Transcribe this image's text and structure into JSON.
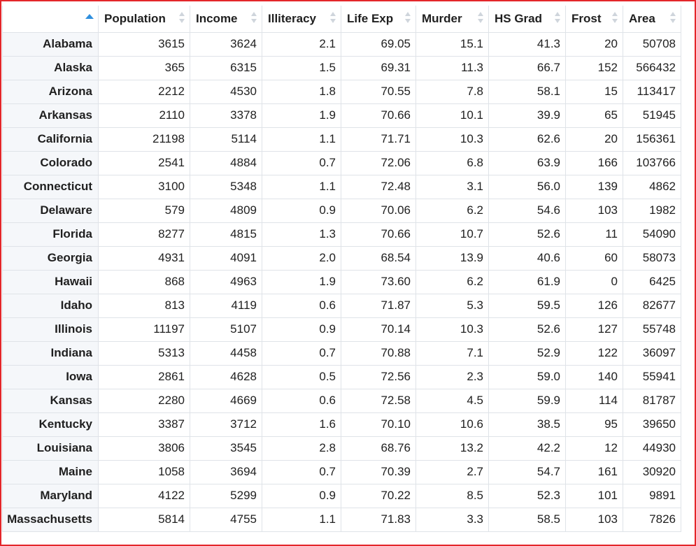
{
  "colors": {
    "accent": "#2f8fde",
    "frame_border": "#e3262a",
    "rowname_bg": "#f5f7fa",
    "grid": "#dfe3e8"
  },
  "icons": {
    "corner_sort": "sort-ascending-icon",
    "column_sort": "sort-icon"
  },
  "columns": [
    "Population",
    "Income",
    "Illiteracy",
    "Life Exp",
    "Murder",
    "HS Grad",
    "Frost",
    "Area"
  ],
  "rows": [
    {
      "name": "Alabama",
      "cells": [
        "3615",
        "3624",
        "2.1",
        "69.05",
        "15.1",
        "41.3",
        "20",
        "50708"
      ]
    },
    {
      "name": "Alaska",
      "cells": [
        "365",
        "6315",
        "1.5",
        "69.31",
        "11.3",
        "66.7",
        "152",
        "566432"
      ]
    },
    {
      "name": "Arizona",
      "cells": [
        "2212",
        "4530",
        "1.8",
        "70.55",
        "7.8",
        "58.1",
        "15",
        "113417"
      ]
    },
    {
      "name": "Arkansas",
      "cells": [
        "2110",
        "3378",
        "1.9",
        "70.66",
        "10.1",
        "39.9",
        "65",
        "51945"
      ]
    },
    {
      "name": "California",
      "cells": [
        "21198",
        "5114",
        "1.1",
        "71.71",
        "10.3",
        "62.6",
        "20",
        "156361"
      ]
    },
    {
      "name": "Colorado",
      "cells": [
        "2541",
        "4884",
        "0.7",
        "72.06",
        "6.8",
        "63.9",
        "166",
        "103766"
      ]
    },
    {
      "name": "Connecticut",
      "cells": [
        "3100",
        "5348",
        "1.1",
        "72.48",
        "3.1",
        "56.0",
        "139",
        "4862"
      ]
    },
    {
      "name": "Delaware",
      "cells": [
        "579",
        "4809",
        "0.9",
        "70.06",
        "6.2",
        "54.6",
        "103",
        "1982"
      ]
    },
    {
      "name": "Florida",
      "cells": [
        "8277",
        "4815",
        "1.3",
        "70.66",
        "10.7",
        "52.6",
        "11",
        "54090"
      ]
    },
    {
      "name": "Georgia",
      "cells": [
        "4931",
        "4091",
        "2.0",
        "68.54",
        "13.9",
        "40.6",
        "60",
        "58073"
      ]
    },
    {
      "name": "Hawaii",
      "cells": [
        "868",
        "4963",
        "1.9",
        "73.60",
        "6.2",
        "61.9",
        "0",
        "6425"
      ]
    },
    {
      "name": "Idaho",
      "cells": [
        "813",
        "4119",
        "0.6",
        "71.87",
        "5.3",
        "59.5",
        "126",
        "82677"
      ]
    },
    {
      "name": "Illinois",
      "cells": [
        "11197",
        "5107",
        "0.9",
        "70.14",
        "10.3",
        "52.6",
        "127",
        "55748"
      ]
    },
    {
      "name": "Indiana",
      "cells": [
        "5313",
        "4458",
        "0.7",
        "70.88",
        "7.1",
        "52.9",
        "122",
        "36097"
      ]
    },
    {
      "name": "Iowa",
      "cells": [
        "2861",
        "4628",
        "0.5",
        "72.56",
        "2.3",
        "59.0",
        "140",
        "55941"
      ]
    },
    {
      "name": "Kansas",
      "cells": [
        "2280",
        "4669",
        "0.6",
        "72.58",
        "4.5",
        "59.9",
        "114",
        "81787"
      ]
    },
    {
      "name": "Kentucky",
      "cells": [
        "3387",
        "3712",
        "1.6",
        "70.10",
        "10.6",
        "38.5",
        "95",
        "39650"
      ]
    },
    {
      "name": "Louisiana",
      "cells": [
        "3806",
        "3545",
        "2.8",
        "68.76",
        "13.2",
        "42.2",
        "12",
        "44930"
      ]
    },
    {
      "name": "Maine",
      "cells": [
        "1058",
        "3694",
        "0.7",
        "70.39",
        "2.7",
        "54.7",
        "161",
        "30920"
      ]
    },
    {
      "name": "Maryland",
      "cells": [
        "4122",
        "5299",
        "0.9",
        "70.22",
        "8.5",
        "52.3",
        "101",
        "9891"
      ]
    },
    {
      "name": "Massachusetts",
      "cells": [
        "5814",
        "4755",
        "1.1",
        "71.83",
        "3.3",
        "58.5",
        "103",
        "7826"
      ]
    }
  ]
}
